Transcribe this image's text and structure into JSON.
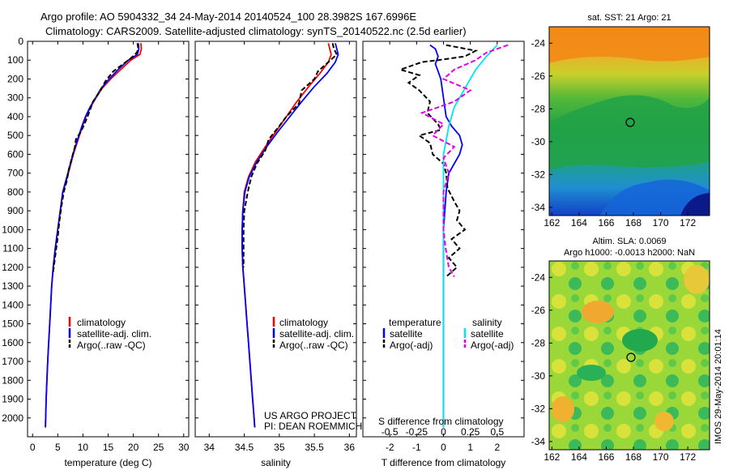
{
  "header": {
    "title_line1": "Argo profile: AO 5904332_34 24-May-2014 20140524_100 28.3982S 167.6996E",
    "title_line2": "Climatology: CARS2009. Satellite-adjusted climatology: synTS_20140522.nc (2.5d earlier)"
  },
  "colors": {
    "climatology": "#ff0000",
    "satellite": "#0000ff",
    "argo": "#000000",
    "salinity_satellite": "#00e5ee",
    "salinity_argo": "#e600e6"
  },
  "legend_profile": {
    "climatology": "climatology",
    "satellite": "satellite-adj. clim.",
    "argo": "Argo(..raw -QC)"
  },
  "legend_diff": {
    "temperature_head": "temperature",
    "salinity_head": "salinity",
    "t_sat": "satellite",
    "t_argo": "Argo(-adj)",
    "s_sat": "satellite",
    "s_argo": "Argo(-adj)"
  },
  "credit": {
    "line1": "US ARGO PROJECT",
    "line2": "PI: DEAN ROEMMICH"
  },
  "maps": {
    "sst_title": "sat. SST: 21  Argo: 21",
    "sla_title1": "Altim. SLA: 0.0069",
    "sla_title2": "Argo h1000: -0.0013  h2000: NaN",
    "xticks": [
      "162",
      "164",
      "166",
      "168",
      "170",
      "172"
    ],
    "yticks": [
      "-24",
      "-26",
      "-28",
      "-30",
      "-32",
      "-34"
    ]
  },
  "stamp": "IMOS 29-May-2014 20:01:14",
  "chart_data": [
    {
      "type": "line",
      "panel": "temperature",
      "xlabel": "temperature (deg C)",
      "ylabel": "",
      "xlim": [
        -1,
        31
      ],
      "ylim": [
        2100,
        0
      ],
      "xticks": [
        "0",
        "5",
        "10",
        "15",
        "20",
        "25",
        "30"
      ],
      "yticks": [
        "0",
        "100",
        "200",
        "300",
        "400",
        "500",
        "600",
        "700",
        "800",
        "900",
        "1000",
        "1100",
        "1200",
        "1300",
        "1400",
        "1500",
        "1600",
        "1700",
        "1800",
        "1900",
        "2000"
      ],
      "series": [
        {
          "name": "climatology",
          "points": [
            [
              21.5,
              10
            ],
            [
              21.6,
              40
            ],
            [
              21.3,
              70
            ],
            [
              19.5,
              100
            ],
            [
              17.5,
              150
            ],
            [
              15.5,
              200
            ],
            [
              13.8,
              250
            ],
            [
              12.6,
              300
            ],
            [
              11.5,
              350
            ],
            [
              10.6,
              400
            ],
            [
              9.9,
              450
            ],
            [
              9.3,
              500
            ],
            [
              8.7,
              550
            ],
            [
              8.1,
              600
            ],
            [
              7.6,
              650
            ],
            [
              7.1,
              700
            ],
            [
              6.6,
              750
            ],
            [
              6.0,
              800
            ],
            [
              5.5,
              900
            ],
            [
              5.0,
              1000
            ],
            [
              4.5,
              1100
            ],
            [
              4.1,
              1200
            ],
            [
              3.8,
              1300
            ],
            [
              3.6,
              1400
            ],
            [
              3.4,
              1500
            ],
            [
              3.2,
              1600
            ],
            [
              3.0,
              1700
            ],
            [
              2.85,
              1800
            ],
            [
              2.7,
              1900
            ],
            [
              2.6,
              2000
            ],
            [
              2.55,
              2050
            ]
          ]
        },
        {
          "name": "satellite-adj. clim.",
          "points": [
            [
              21.0,
              10
            ],
            [
              21.1,
              40
            ],
            [
              20.8,
              70
            ],
            [
              19.0,
              100
            ],
            [
              17.0,
              150
            ],
            [
              15.2,
              200
            ],
            [
              13.6,
              250
            ],
            [
              12.5,
              300
            ],
            [
              11.4,
              350
            ],
            [
              10.5,
              400
            ],
            [
              9.8,
              450
            ],
            [
              9.2,
              500
            ],
            [
              8.6,
              550
            ],
            [
              8.0,
              600
            ],
            [
              7.5,
              650
            ],
            [
              7.0,
              700
            ],
            [
              6.5,
              750
            ],
            [
              6.0,
              800
            ],
            [
              5.5,
              900
            ],
            [
              5.0,
              1000
            ],
            [
              4.5,
              1100
            ],
            [
              4.1,
              1200
            ],
            [
              3.8,
              1300
            ],
            [
              3.6,
              1400
            ],
            [
              3.4,
              1500
            ],
            [
              3.2,
              1600
            ],
            [
              3.0,
              1700
            ],
            [
              2.85,
              1800
            ],
            [
              2.7,
              1900
            ],
            [
              2.6,
              2000
            ],
            [
              2.55,
              2050
            ]
          ]
        },
        {
          "name": "Argo(..raw -QC)",
          "points": [
            [
              20.8,
              10
            ],
            [
              21.0,
              40
            ],
            [
              20.7,
              60
            ],
            [
              19.5,
              90
            ],
            [
              18.0,
              120
            ],
            [
              16.0,
              160
            ],
            [
              14.5,
              210
            ],
            [
              13.5,
              260
            ],
            [
              12.0,
              320
            ],
            [
              11.2,
              380
            ],
            [
              10.3,
              440
            ],
            [
              9.6,
              480
            ],
            [
              8.6,
              520
            ],
            [
              8.4,
              560
            ],
            [
              7.8,
              620
            ],
            [
              7.2,
              680
            ],
            [
              6.8,
              740
            ],
            [
              6.2,
              800
            ],
            [
              5.7,
              880
            ],
            [
              5.3,
              960
            ],
            [
              5.0,
              1040
            ],
            [
              4.6,
              1120
            ],
            [
              4.3,
              1180
            ],
            [
              4.0,
              1240
            ]
          ]
        }
      ]
    },
    {
      "type": "line",
      "panel": "salinity",
      "xlabel": "salinity",
      "ylabel": "",
      "xlim": [
        33.8,
        36.1
      ],
      "ylim": [
        2100,
        0
      ],
      "xticks": [
        "34",
        "34.5",
        "35",
        "35.5",
        "36"
      ],
      "series": [
        {
          "name": "climatology",
          "points": [
            [
              35.7,
              10
            ],
            [
              35.72,
              40
            ],
            [
              35.74,
              70
            ],
            [
              35.7,
              110
            ],
            [
              35.58,
              170
            ],
            [
              35.42,
              240
            ],
            [
              35.25,
              320
            ],
            [
              35.1,
              400
            ],
            [
              34.95,
              480
            ],
            [
              34.8,
              560
            ],
            [
              34.66,
              640
            ],
            [
              34.56,
              720
            ],
            [
              34.5,
              800
            ],
            [
              34.48,
              900
            ],
            [
              34.47,
              1000
            ],
            [
              34.47,
              1100
            ],
            [
              34.48,
              1200
            ],
            [
              34.5,
              1300
            ],
            [
              34.52,
              1400
            ],
            [
              34.54,
              1500
            ],
            [
              34.56,
              1600
            ],
            [
              34.58,
              1700
            ],
            [
              34.6,
              1800
            ],
            [
              34.62,
              1900
            ],
            [
              34.64,
              2000
            ],
            [
              34.65,
              2050
            ]
          ]
        },
        {
          "name": "satellite-adj. clim.",
          "points": [
            [
              35.8,
              10
            ],
            [
              35.82,
              40
            ],
            [
              35.84,
              70
            ],
            [
              35.8,
              110
            ],
            [
              35.68,
              170
            ],
            [
              35.5,
              240
            ],
            [
              35.32,
              320
            ],
            [
              35.15,
              400
            ],
            [
              34.98,
              480
            ],
            [
              34.82,
              560
            ],
            [
              34.68,
              640
            ],
            [
              34.57,
              720
            ],
            [
              34.51,
              800
            ],
            [
              34.48,
              900
            ],
            [
              34.47,
              1000
            ],
            [
              34.47,
              1100
            ],
            [
              34.48,
              1200
            ],
            [
              34.5,
              1300
            ],
            [
              34.52,
              1400
            ],
            [
              34.54,
              1500
            ],
            [
              34.56,
              1600
            ],
            [
              34.58,
              1700
            ],
            [
              34.6,
              1800
            ],
            [
              34.62,
              1900
            ],
            [
              34.64,
              2000
            ],
            [
              34.65,
              2050
            ]
          ]
        },
        {
          "name": "Argo(..raw -QC)",
          "points": [
            [
              35.76,
              10
            ],
            [
              35.78,
              40
            ],
            [
              35.82,
              70
            ],
            [
              35.7,
              110
            ],
            [
              35.55,
              160
            ],
            [
              35.5,
              200
            ],
            [
              35.32,
              260
            ],
            [
              35.28,
              330
            ],
            [
              35.1,
              400
            ],
            [
              35.0,
              450
            ],
            [
              34.85,
              520
            ],
            [
              34.8,
              580
            ],
            [
              34.68,
              650
            ],
            [
              34.6,
              720
            ],
            [
              34.55,
              800
            ],
            [
              34.5,
              900
            ],
            [
              34.49,
              1000
            ],
            [
              34.49,
              1100
            ],
            [
              34.49,
              1200
            ]
          ]
        }
      ]
    },
    {
      "type": "line",
      "panel": "difference",
      "xlabel": "T difference from climatology",
      "xlabel_top": "S difference from climatology",
      "xlim": [
        -3.0,
        3.0
      ],
      "ylim": [
        2100,
        0
      ],
      "xticks": [
        "-2",
        "-1",
        "0",
        "1",
        "2"
      ],
      "xticks_s": [
        "-0.5",
        "-0.25",
        "0",
        "0.25",
        "0.5"
      ],
      "series": [
        {
          "name": "satellite",
          "quantity": "temperature",
          "points": [
            [
              -0.5,
              20
            ],
            [
              -0.3,
              40
            ],
            [
              -0.2,
              80
            ],
            [
              -0.3,
              120
            ],
            [
              -0.2,
              160
            ],
            [
              -0.1,
              200
            ],
            [
              0.0,
              300
            ],
            [
              0.1,
              400
            ],
            [
              0.3,
              450
            ],
            [
              0.6,
              500
            ],
            [
              0.7,
              550
            ],
            [
              0.6,
              600
            ],
            [
              0.4,
              650
            ],
            [
              0.2,
              700
            ],
            [
              0.1,
              800
            ],
            [
              0.05,
              900
            ],
            [
              0.0,
              1000
            ],
            [
              0.0,
              1200
            ],
            [
              0.0,
              1500
            ],
            [
              0.0,
              1800
            ],
            [
              0.0,
              2050
            ]
          ]
        },
        {
          "name": "Argo(-adj)",
          "quantity": "temperature",
          "points": [
            [
              0.1,
              20
            ],
            [
              1.2,
              50
            ],
            [
              0.8,
              80
            ],
            [
              -0.2,
              100
            ],
            [
              -0.8,
              110
            ],
            [
              -1.6,
              150
            ],
            [
              -0.9,
              180
            ],
            [
              -1.3,
              220
            ],
            [
              -0.9,
              260
            ],
            [
              -0.5,
              320
            ],
            [
              -0.6,
              380
            ],
            [
              -0.2,
              440
            ],
            [
              -0.1,
              470
            ],
            [
              -0.9,
              500
            ],
            [
              -0.5,
              540
            ],
            [
              -0.4,
              600
            ],
            [
              0.0,
              650
            ],
            [
              0.1,
              700
            ],
            [
              0.15,
              780
            ],
            [
              0.4,
              850
            ],
            [
              0.6,
              900
            ],
            [
              0.5,
              950
            ],
            [
              0.8,
              1000
            ],
            [
              0.3,
              1050
            ],
            [
              0.6,
              1100
            ],
            [
              0.2,
              1150
            ],
            [
              0.5,
              1200
            ],
            [
              0.1,
              1250
            ]
          ]
        },
        {
          "name": "satellite",
          "quantity": "salinity",
          "points": [
            [
              0.5,
              20
            ],
            [
              0.4,
              80
            ],
            [
              0.3,
              150
            ],
            [
              0.2,
              250
            ],
            [
              0.1,
              350
            ],
            [
              0.05,
              450
            ],
            [
              0.0,
              600
            ],
            [
              0.0,
              900
            ],
            [
              0.0,
              1200
            ],
            [
              0.0,
              1500
            ],
            [
              0.0,
              1800
            ],
            [
              0.0,
              2050
            ]
          ]
        },
        {
          "name": "Argo(-adj)",
          "quantity": "salinity",
          "points": [
            [
              0.6,
              20
            ],
            [
              0.4,
              60
            ],
            [
              0.3,
              100
            ],
            [
              0.1,
              150
            ],
            [
              0.0,
              200
            ],
            [
              0.25,
              260
            ],
            [
              0.1,
              320
            ],
            [
              -0.2,
              380
            ],
            [
              0.0,
              440
            ],
            [
              -0.1,
              500
            ],
            [
              0.1,
              560
            ],
            [
              0.0,
              620
            ],
            [
              0.05,
              700
            ],
            [
              0.0,
              800
            ],
            [
              0.0,
              900
            ],
            [
              0.0,
              1000
            ],
            [
              0.02,
              1100
            ],
            [
              0.05,
              1200
            ],
            [
              0.1,
              1250
            ]
          ]
        }
      ]
    }
  ]
}
